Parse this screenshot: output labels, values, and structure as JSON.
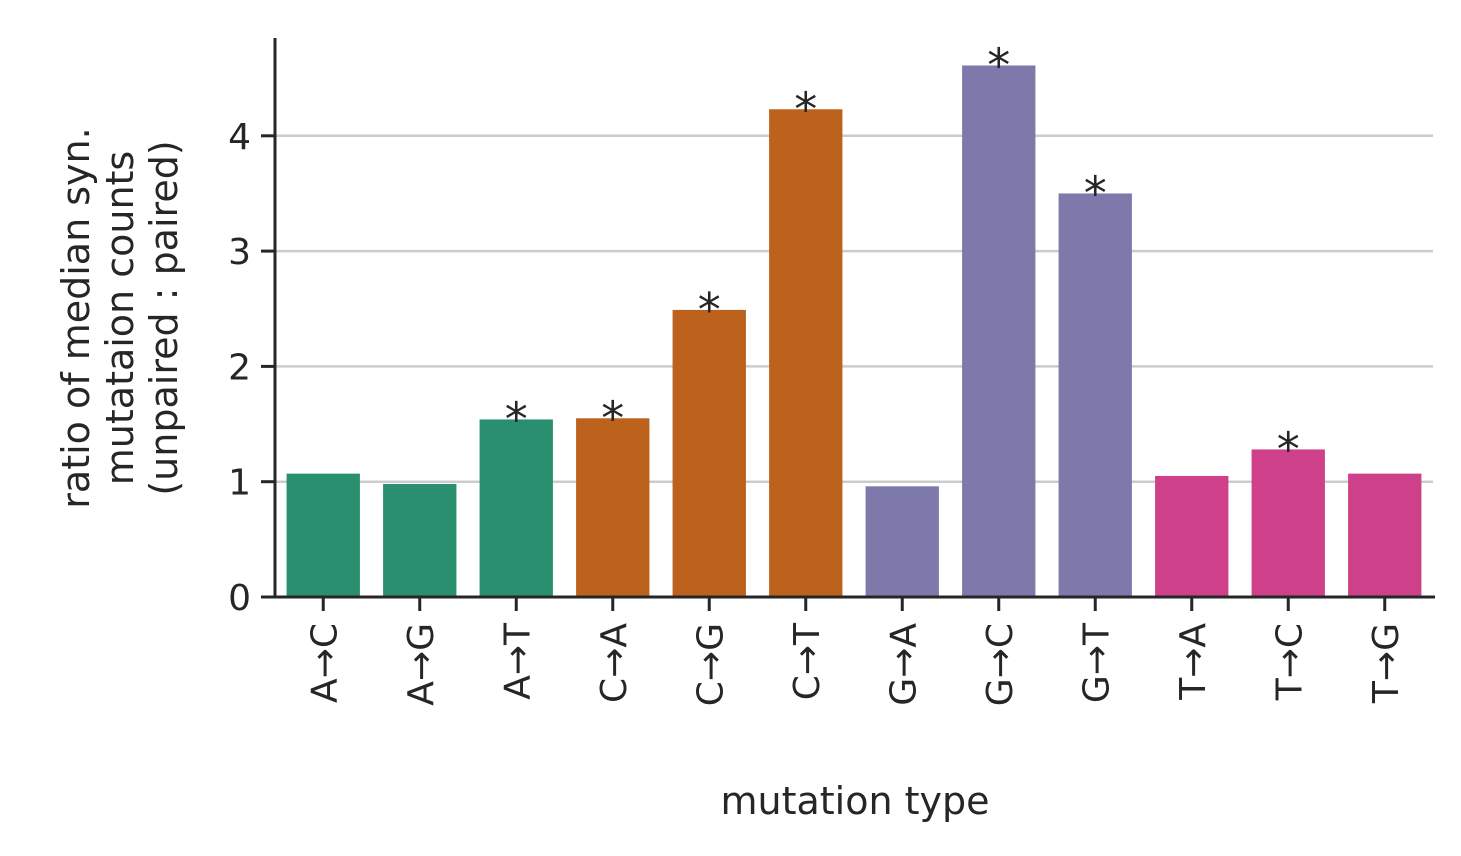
{
  "chart_data": {
    "type": "bar",
    "xlabel": "mutation type",
    "ylabel_lines": [
      "ratio of median syn.",
      "mutataion counts",
      "(unpaired : paired)"
    ],
    "categories": [
      "A→C",
      "A→G",
      "A→T",
      "C→A",
      "C→G",
      "C→T",
      "G→A",
      "G→C",
      "G→T",
      "T→A",
      "T→C",
      "T→G"
    ],
    "values": [
      1.07,
      0.98,
      1.54,
      1.55,
      2.49,
      4.23,
      0.96,
      4.61,
      3.5,
      1.05,
      1.28,
      1.07
    ],
    "significant": [
      false,
      false,
      true,
      true,
      true,
      true,
      false,
      true,
      true,
      false,
      true,
      false
    ],
    "significance_marker": "*",
    "bar_colors": [
      "#2a8f6f",
      "#2a8f6f",
      "#2a8f6f",
      "#bd621c",
      "#bd621c",
      "#bd621c",
      "#7d79ab",
      "#7d79ab",
      "#7d79ab",
      "#cf408a",
      "#cf408a",
      "#cf408a"
    ],
    "yticks": [
      0,
      1,
      2,
      3,
      4
    ],
    "ylim": [
      0,
      4.85
    ],
    "grid": "horizontal"
  }
}
